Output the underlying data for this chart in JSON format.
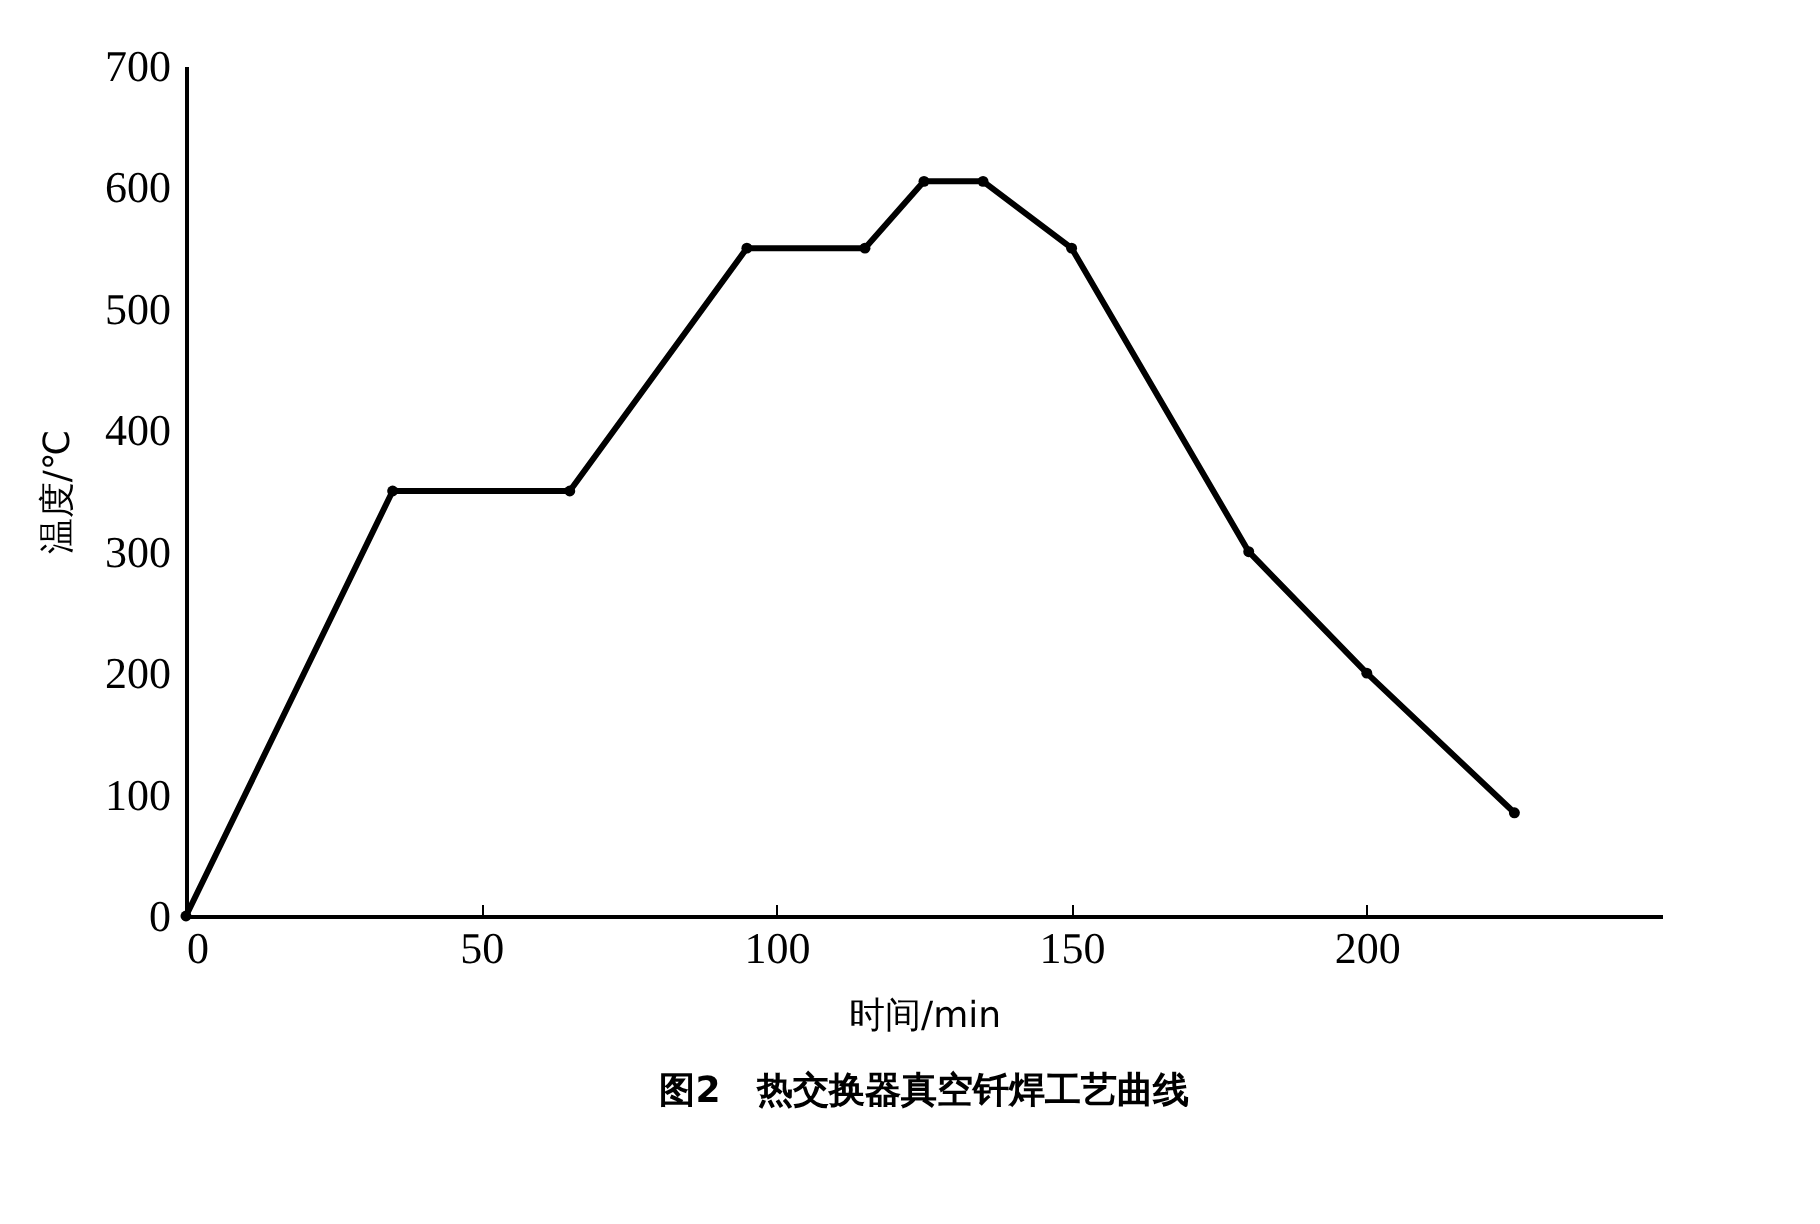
{
  "chart_data": {
    "type": "line",
    "title": "图2　热交换器真空钎焊工艺曲线",
    "xlabel": "时间/min",
    "ylabel": "温度/℃",
    "x": [
      0,
      35,
      65,
      95,
      115,
      125,
      135,
      150,
      180,
      200,
      225
    ],
    "series": [
      {
        "color": "#000000",
        "values": [
          0,
          350,
          350,
          550,
          550,
          605,
          605,
          550,
          300,
          200,
          85
        ]
      }
    ],
    "xlim": [
      0,
      250
    ],
    "xticks": [
      0,
      50,
      100,
      150,
      200
    ],
    "ylim": [
      0,
      700
    ],
    "yticks": [
      0,
      100,
      200,
      300,
      400,
      500,
      600,
      700
    ],
    "grid": false,
    "legend": false,
    "marker": "circle",
    "line_style": "solid"
  }
}
